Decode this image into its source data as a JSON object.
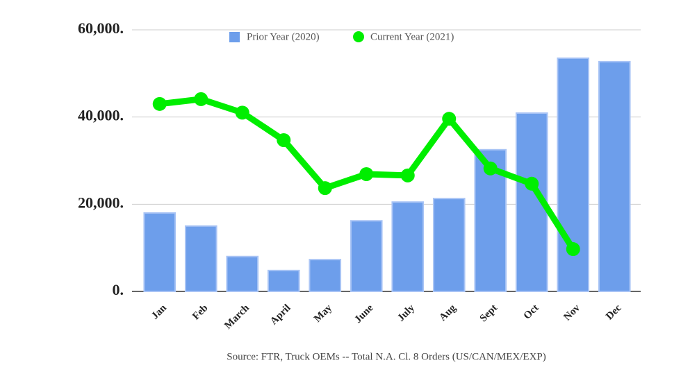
{
  "chart_data": {
    "type": "combo",
    "categories": [
      "Jan",
      "Feb",
      "March",
      "April",
      "May",
      "June",
      "July",
      "Aug",
      "Sept",
      "Oct",
      "Nov",
      "Dec"
    ],
    "series": [
      {
        "name": "Prior Year (2020)",
        "type": "bar",
        "color": "#6d9eeb",
        "values": [
          18000,
          15000,
          8000,
          4800,
          7300,
          16200,
          20500,
          21300,
          32500,
          40900,
          53500,
          52700
        ]
      },
      {
        "name": "Current Year (2021)",
        "type": "line",
        "color": "#00ee00",
        "values": [
          43000,
          44100,
          41000,
          34700,
          23700,
          26900,
          26600,
          39600,
          28200,
          24700,
          9700,
          null
        ]
      }
    ],
    "ylim": [
      0,
      60000
    ],
    "yticks": [
      {
        "value": 0,
        "label": "0."
      },
      {
        "value": 20000,
        "label": "20,000."
      },
      {
        "value": 40000,
        "label": "40,000."
      },
      {
        "value": 60000,
        "label": "60,000."
      }
    ],
    "grid": true,
    "legend": "top",
    "source": "Source: FTR, Truck OEMs -- Total N.A. Cl. 8 Orders (US/CAN/MEX/EXP)"
  }
}
